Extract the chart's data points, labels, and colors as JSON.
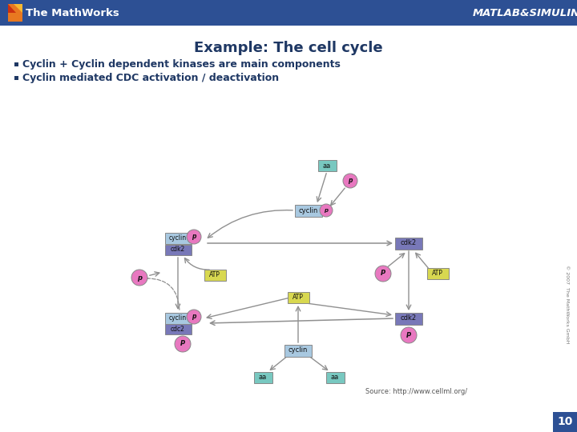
{
  "title": "Example: The cell cycle",
  "bullet1": "Cyclin + Cyclin dependent kinases are main components",
  "bullet2": "Cyclin mediated CDC activation / deactivation",
  "header_bg": "#2D5094",
  "header_text_color": "#FFFFFF",
  "mathworks_text": "The MathWorks",
  "matlab_simulink": "MATLAB&SIMULINK",
  "title_color": "#1F3864",
  "bullet_color": "#1F3864",
  "slide_bg": "#FFFFFF",
  "slide_number": "10",
  "slide_number_bg": "#2D5094",
  "source_text": "Source: http://www.cellml.org/",
  "copyright_text": "© 2007  The MathWorks GmbH",
  "box_cyclin_color": "#A8C8E0",
  "box_cdk_color": "#7878B8",
  "box_atp_color": "#D8D850",
  "box_aa_color": "#78C8C0",
  "circle_p_color": "#E878C0",
  "arrow_color": "#909090"
}
